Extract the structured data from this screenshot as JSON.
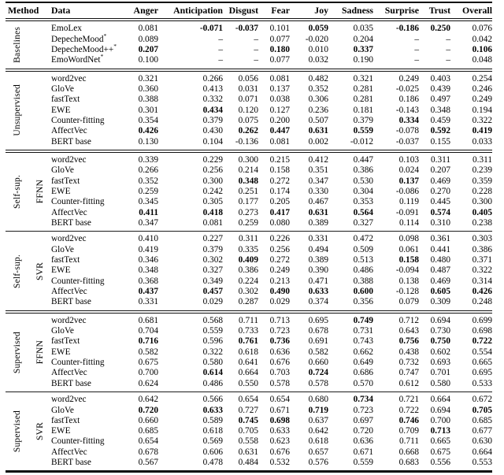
{
  "table": {
    "columns": [
      "Method",
      "Data",
      "Anger",
      "Anticipation",
      "Disgust",
      "Fear",
      "Joy",
      "Sadness",
      "Surprise",
      "Trust",
      "Overall"
    ],
    "sections": [
      {
        "method": "Baselines",
        "sub": "",
        "rows": [
          {
            "data": "EmoLex",
            "sup": "",
            "values": [
              "0.081",
              "-0.071",
              "-0.037",
              "0.101",
              "0.059",
              "0.035",
              "-0.186",
              "0.250",
              "0.076"
            ],
            "bold": [
              1,
              2,
              4,
              6,
              7
            ]
          },
          {
            "data": "DepecheMood",
            "sup": "*",
            "values": [
              "0.089",
              "–",
              "–",
              "0.077",
              "-0.020",
              "0.204",
              "–",
              "–",
              "0.042"
            ],
            "bold": []
          },
          {
            "data": "DepecheMood++",
            "sup": "*",
            "values": [
              "0.207",
              "–",
              "–",
              "0.180",
              "0.010",
              "0.337",
              "–",
              "–",
              "0.106"
            ],
            "bold": [
              0,
              3,
              5,
              8
            ]
          },
          {
            "data": "EmoWordNet",
            "sup": "*",
            "values": [
              "0.100",
              "–",
              "–",
              "0.077",
              "0.032",
              "0.190",
              "–",
              "–",
              "0.048"
            ],
            "bold": []
          }
        ]
      },
      {
        "method": "Unsupervised",
        "sub": "",
        "rows": [
          {
            "data": "word2vec",
            "sup": "",
            "values": [
              "0.321",
              "0.266",
              "0.056",
              "0.081",
              "0.482",
              "0.321",
              "0.249",
              "0.403",
              "0.254"
            ],
            "bold": []
          },
          {
            "data": "GloVe",
            "sup": "",
            "values": [
              "0.360",
              "0.413",
              "0.031",
              "0.137",
              "0.352",
              "0.281",
              "-0.025",
              "0.439",
              "0.246"
            ],
            "bold": []
          },
          {
            "data": "fastText",
            "sup": "",
            "values": [
              "0.388",
              "0.332",
              "0.071",
              "0.038",
              "0.306",
              "0.281",
              "0.186",
              "0.497",
              "0.249"
            ],
            "bold": []
          },
          {
            "data": "EWE",
            "sup": "",
            "values": [
              "0.301",
              "0.434",
              "0.120",
              "0.127",
              "0.236",
              "0.181",
              "-0.143",
              "0.348",
              "0.194"
            ],
            "bold": [
              1
            ]
          },
          {
            "data": "Counter-fitting",
            "sup": "",
            "values": [
              "0.354",
              "0.379",
              "0.075",
              "0.200",
              "0.507",
              "0.379",
              "0.334",
              "0.459",
              "0.322"
            ],
            "bold": [
              6
            ]
          },
          {
            "data": "AffectVec",
            "sup": "",
            "values": [
              "0.426",
              "0.430",
              "0.262",
              "0.447",
              "0.631",
              "0.559",
              "-0.078",
              "0.592",
              "0.419"
            ],
            "bold": [
              0,
              2,
              3,
              4,
              5,
              7,
              8
            ]
          },
          {
            "data": "BERT base",
            "sup": "",
            "values": [
              "0.130",
              "0.104",
              "-0.136",
              "0.081",
              "0.002",
              "-0.012",
              "-0.037",
              "0.155",
              "0.033"
            ],
            "bold": []
          }
        ]
      },
      {
        "method": "Self-sup.",
        "sub": "FFNN",
        "rows": [
          {
            "data": "word2vec",
            "sup": "",
            "values": [
              "0.339",
              "0.229",
              "0.300",
              "0.215",
              "0.412",
              "0.447",
              "0.103",
              "0.311",
              "0.311"
            ],
            "bold": []
          },
          {
            "data": "GloVe",
            "sup": "",
            "values": [
              "0.266",
              "0.256",
              "0.214",
              "0.158",
              "0.351",
              "0.386",
              "0.024",
              "0.207",
              "0.239"
            ],
            "bold": []
          },
          {
            "data": "fastText",
            "sup": "",
            "values": [
              "0.352",
              "0.300",
              "0.348",
              "0.272",
              "0.347",
              "0.530",
              "0.137",
              "0.469",
              "0.359"
            ],
            "bold": [
              2,
              6
            ]
          },
          {
            "data": "EWE",
            "sup": "",
            "values": [
              "0.259",
              "0.242",
              "0.251",
              "0.174",
              "0.330",
              "0.304",
              "-0.086",
              "0.270",
              "0.228"
            ],
            "bold": []
          },
          {
            "data": "Counter-fitting",
            "sup": "",
            "values": [
              "0.345",
              "0.305",
              "0.177",
              "0.205",
              "0.467",
              "0.353",
              "0.119",
              "0.445",
              "0.300"
            ],
            "bold": []
          },
          {
            "data": "AffectVec",
            "sup": "",
            "values": [
              "0.411",
              "0.418",
              "0.273",
              "0.417",
              "0.631",
              "0.564",
              "-0.091",
              "0.574",
              "0.405"
            ],
            "bold": [
              0,
              1,
              3,
              4,
              5,
              7,
              8
            ]
          },
          {
            "data": "BERT base",
            "sup": "",
            "values": [
              "0.347",
              "0.081",
              "0.259",
              "0.080",
              "0.389",
              "0.327",
              "0.114",
              "0.310",
              "0.238"
            ],
            "bold": []
          }
        ]
      },
      {
        "method": "Self-sup.",
        "sub": "SVR",
        "rows": [
          {
            "data": "word2vec",
            "sup": "",
            "values": [
              "0.410",
              "0.227",
              "0.311",
              "0.226",
              "0.331",
              "0.472",
              "0.098",
              "0.361",
              "0.303"
            ],
            "bold": []
          },
          {
            "data": "GloVe",
            "sup": "",
            "values": [
              "0.419",
              "0.379",
              "0.335",
              "0.256",
              "0.494",
              "0.509",
              "0.061",
              "0.441",
              "0.386"
            ],
            "bold": []
          },
          {
            "data": "fastText",
            "sup": "",
            "values": [
              "0.346",
              "0.302",
              "0.409",
              "0.272",
              "0.389",
              "0.513",
              "0.158",
              "0.480",
              "0.371"
            ],
            "bold": [
              2,
              6
            ]
          },
          {
            "data": "EWE",
            "sup": "",
            "values": [
              "0.348",
              "0.327",
              "0.386",
              "0.249",
              "0.390",
              "0.486",
              "-0.094",
              "0.487",
              "0.322"
            ],
            "bold": []
          },
          {
            "data": "Counter-fitting",
            "sup": "",
            "values": [
              "0.368",
              "0.349",
              "0.224",
              "0.213",
              "0.471",
              "0.388",
              "0.138",
              "0.469",
              "0.314"
            ],
            "bold": []
          },
          {
            "data": "AffectVec",
            "sup": "",
            "values": [
              "0.437",
              "0.457",
              "0.302",
              "0.490",
              "0.633",
              "0.600",
              "-0.128",
              "0.605",
              "0.426"
            ],
            "bold": [
              0,
              1,
              3,
              4,
              5,
              7,
              8
            ]
          },
          {
            "data": "BERT base",
            "sup": "",
            "values": [
              "0.331",
              "0.029",
              "0.287",
              "0.029",
              "0.374",
              "0.356",
              "0.079",
              "0.309",
              "0.248"
            ],
            "bold": []
          }
        ]
      },
      {
        "method": "Supervised",
        "sub": "FFNN",
        "rows": [
          {
            "data": "word2vec",
            "sup": "",
            "values": [
              "0.681",
              "0.568",
              "0.711",
              "0.713",
              "0.695",
              "0.749",
              "0.712",
              "0.694",
              "0.699"
            ],
            "bold": [
              5
            ]
          },
          {
            "data": "GloVe",
            "sup": "",
            "values": [
              "0.704",
              "0.559",
              "0.733",
              "0.723",
              "0.678",
              "0.731",
              "0.643",
              "0.730",
              "0.698"
            ],
            "bold": []
          },
          {
            "data": "fastText",
            "sup": "",
            "values": [
              "0.716",
              "0.596",
              "0.761",
              "0.736",
              "0.691",
              "0.743",
              "0.756",
              "0.750",
              "0.722"
            ],
            "bold": [
              0,
              2,
              3,
              6,
              7,
              8
            ]
          },
          {
            "data": "EWE",
            "sup": "",
            "values": [
              "0.582",
              "0.322",
              "0.618",
              "0.636",
              "0.582",
              "0.662",
              "0.438",
              "0.602",
              "0.554"
            ],
            "bold": []
          },
          {
            "data": "Counter-fitting",
            "sup": "",
            "values": [
              "0.675",
              "0.580",
              "0.641",
              "0.676",
              "0.660",
              "0.649",
              "0.732",
              "0.693",
              "0.665"
            ],
            "bold": []
          },
          {
            "data": "AffectVec",
            "sup": "",
            "values": [
              "0.700",
              "0.614",
              "0.664",
              "0.703",
              "0.724",
              "0.686",
              "0.747",
              "0.701",
              "0.695"
            ],
            "bold": [
              1,
              4
            ]
          },
          {
            "data": "BERT base",
            "sup": "",
            "values": [
              "0.624",
              "0.486",
              "0.550",
              "0.578",
              "0.578",
              "0.570",
              "0.612",
              "0.580",
              "0.533"
            ],
            "bold": []
          }
        ]
      },
      {
        "method": "Supervised",
        "sub": "SVR",
        "rows": [
          {
            "data": "word2vec",
            "sup": "",
            "values": [
              "0.642",
              "0.566",
              "0.654",
              "0.654",
              "0.680",
              "0.734",
              "0.721",
              "0.664",
              "0.672"
            ],
            "bold": [
              5
            ]
          },
          {
            "data": "GloVe",
            "sup": "",
            "values": [
              "0.720",
              "0.633",
              "0.727",
              "0.671",
              "0.719",
              "0.723",
              "0.722",
              "0.694",
              "0.705"
            ],
            "bold": [
              0,
              1,
              4,
              8
            ]
          },
          {
            "data": "fastText",
            "sup": "",
            "values": [
              "0.660",
              "0.589",
              "0.745",
              "0.698",
              "0.637",
              "0.697",
              "0.746",
              "0.700",
              "0.685"
            ],
            "bold": [
              2,
              3,
              6
            ]
          },
          {
            "data": "EWE",
            "sup": "",
            "values": [
              "0.685",
              "0.618",
              "0.705",
              "0.633",
              "0.642",
              "0.720",
              "0.709",
              "0.713",
              "0.677"
            ],
            "bold": [
              7
            ]
          },
          {
            "data": "Counter-fitting",
            "sup": "",
            "values": [
              "0.654",
              "0.569",
              "0.558",
              "0.623",
              "0.618",
              "0.636",
              "0.711",
              "0.665",
              "0.630"
            ],
            "bold": []
          },
          {
            "data": "AffectVec",
            "sup": "",
            "values": [
              "0.678",
              "0.606",
              "0.631",
              "0.676",
              "0.657",
              "0.671",
              "0.668",
              "0.675",
              "0.664"
            ],
            "bold": []
          },
          {
            "data": "BERT base",
            "sup": "",
            "values": [
              "0.567",
              "0.478",
              "0.484",
              "0.532",
              "0.576",
              "0.559",
              "0.683",
              "0.556",
              "0.553"
            ],
            "bold": []
          }
        ]
      }
    ]
  }
}
